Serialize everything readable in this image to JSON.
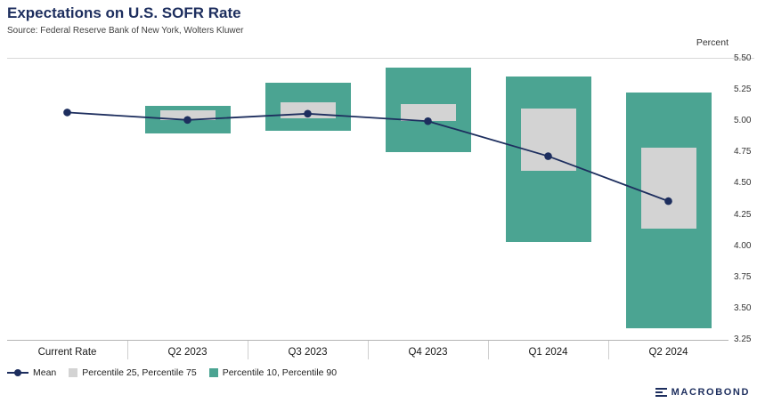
{
  "colors": {
    "navy": "#1d2e5e",
    "teal": "#4ba492",
    "gray": "#d3d3d3"
  },
  "header": {
    "title": "Expectations on U.S. SOFR Rate",
    "source": "Source: Federal Reserve Bank of New York, Wolters Kluwer"
  },
  "axis": {
    "unit_label": "Percent",
    "y_ticks": [
      "5.50",
      "5.25",
      "5.00",
      "4.75",
      "4.50",
      "4.25",
      "4.00",
      "3.75",
      "3.50",
      "3.25"
    ]
  },
  "chart_data": {
    "type": "bar",
    "title": "Expectations on U.S. SOFR Rate",
    "ylabel": "Percent",
    "ylim": [
      3.25,
      5.5
    ],
    "grid": false,
    "legend_position": "bottom-left",
    "categories": [
      "Current Rate",
      "Q2 2023",
      "Q3 2023",
      "Q4 2023",
      "Q1 2024",
      "Q2 2024"
    ],
    "series": [
      {
        "key": "mean",
        "name": "Mean",
        "type": "line",
        "values": [
          5.07,
          5.01,
          5.06,
          5.0,
          4.72,
          4.36
        ]
      },
      {
        "key": "p25_p75",
        "name": "Percentile 25, Percentile 75",
        "type": "range",
        "ranges": [
          null,
          [
            5.01,
            5.09
          ],
          [
            5.02,
            5.15
          ],
          [
            5.0,
            5.14
          ],
          [
            4.6,
            5.1
          ],
          [
            4.14,
            4.79
          ]
        ]
      },
      {
        "key": "p10_p90",
        "name": "Percentile 10, Percentile 90",
        "type": "range",
        "ranges": [
          null,
          [
            4.9,
            5.12
          ],
          [
            4.92,
            5.31
          ],
          [
            4.75,
            5.43
          ],
          [
            4.03,
            5.36
          ],
          [
            3.34,
            5.23
          ]
        ]
      }
    ]
  },
  "legend": {
    "items": [
      {
        "label": "Mean",
        "marker": "line"
      },
      {
        "label": "Percentile 25, Percentile 75",
        "marker": "gray"
      },
      {
        "label": "Percentile 10, Percentile 90",
        "marker": "teal"
      }
    ]
  },
  "branding": {
    "logo_text": "MACROBOND"
  }
}
